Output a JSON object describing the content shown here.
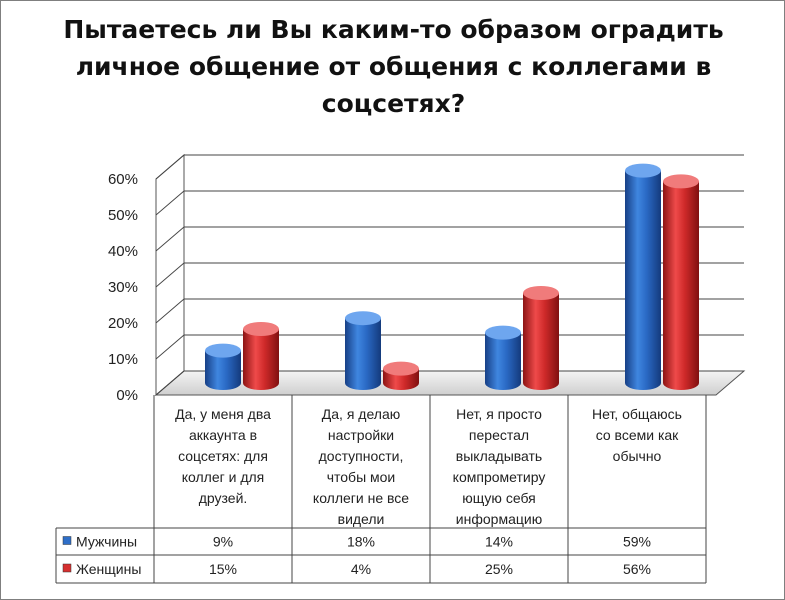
{
  "chart_data": {
    "type": "bar",
    "title": "Пытаетесь ли Вы каким-то образом оградить личное общение от общения с коллегами в соцсетях?",
    "categories": [
      [
        "Да, у меня два",
        "аккаунта в",
        "соцсетях: для",
        "коллег и для",
        "друзей."
      ],
      [
        "Да, я делаю",
        "настройки",
        "доступности,",
        "чтобы мои",
        "коллеги не все",
        "видели"
      ],
      [
        "Нет, я просто",
        "перестал",
        "выкладывать",
        "компрометиру",
        "ющую себя",
        "информацию"
      ],
      [
        "Нет, общаюсь",
        "со всеми как",
        "обычно"
      ]
    ],
    "series": [
      {
        "name": "Мужчины",
        "values": [
          9,
          18,
          14,
          59
        ],
        "labels": [
          "9%",
          "18%",
          "14%",
          "59%"
        ],
        "color": "#2e6ec8"
      },
      {
        "name": "Женщины",
        "values": [
          15,
          4,
          25,
          56
        ],
        "labels": [
          "15%",
          "4%",
          "25%",
          "56%"
        ],
        "color": "#d62f2f"
      }
    ],
    "yticks": [
      "0%",
      "10%",
      "20%",
      "30%",
      "40%",
      "50%",
      "60%"
    ],
    "ylim": [
      0,
      60
    ],
    "grid": true,
    "legend": "data-table"
  }
}
